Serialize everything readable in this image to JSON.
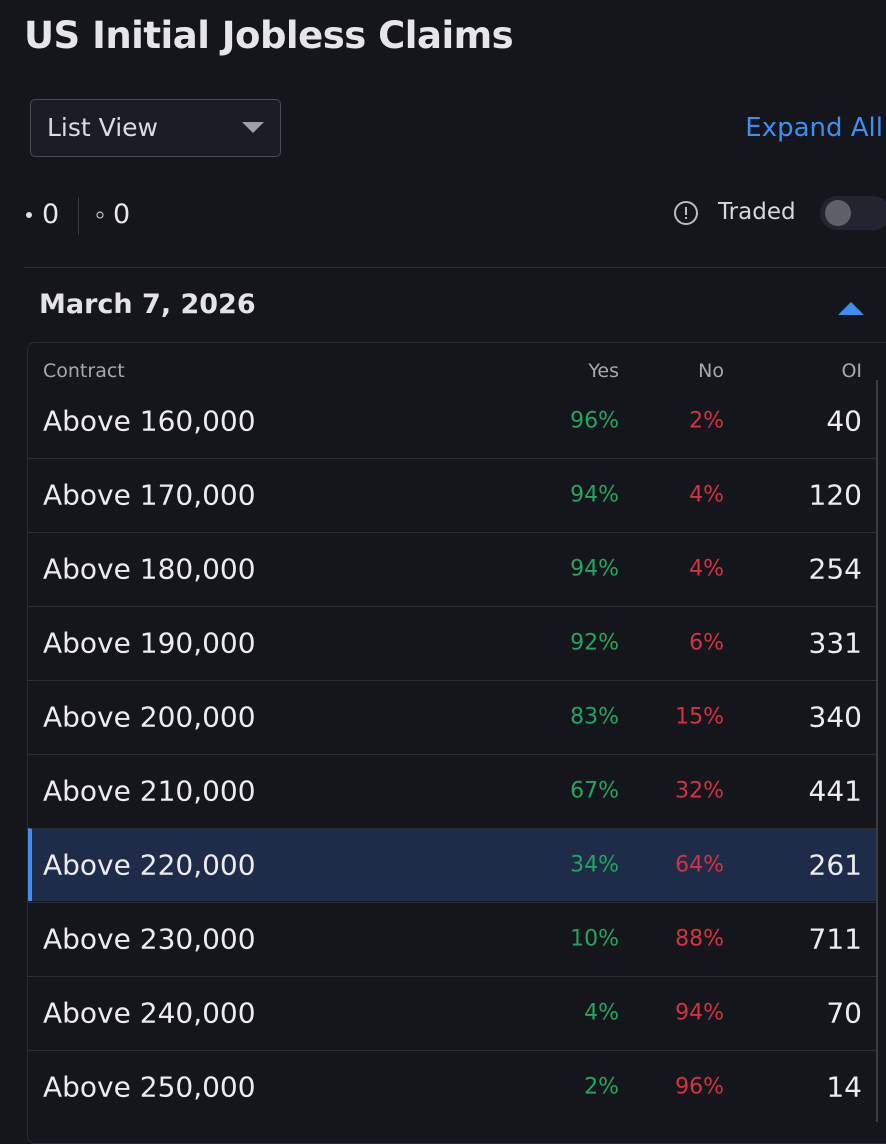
{
  "header": {
    "title": "US Initial Jobless Claims"
  },
  "controls": {
    "view": "List View",
    "expand": "Expand All",
    "count_filled": "0",
    "count_hollow": "0",
    "traded": "Traded"
  },
  "section": {
    "date": "March 7, 2026"
  },
  "table": {
    "columns": [
      "Contract",
      "Yes",
      "No",
      "OI"
    ],
    "highlighted_row": 6,
    "rows": [
      [
        "Above 160,000",
        "96%",
        "2%",
        "40"
      ],
      [
        "Above 170,000",
        "94%",
        "4%",
        "120"
      ],
      [
        "Above 180,000",
        "94%",
        "4%",
        "254"
      ],
      [
        "Above 190,000",
        "92%",
        "6%",
        "331"
      ],
      [
        "Above 200,000",
        "83%",
        "15%",
        "340"
      ],
      [
        "Above 210,000",
        "67%",
        "32%",
        "441"
      ],
      [
        "Above 220,000",
        "34%",
        "64%",
        "261"
      ],
      [
        "Above 230,000",
        "10%",
        "88%",
        "711"
      ],
      [
        "Above 240,000",
        "4%",
        "94%",
        "70"
      ],
      [
        "Above 250,000",
        "2%",
        "96%",
        "14"
      ]
    ]
  }
}
